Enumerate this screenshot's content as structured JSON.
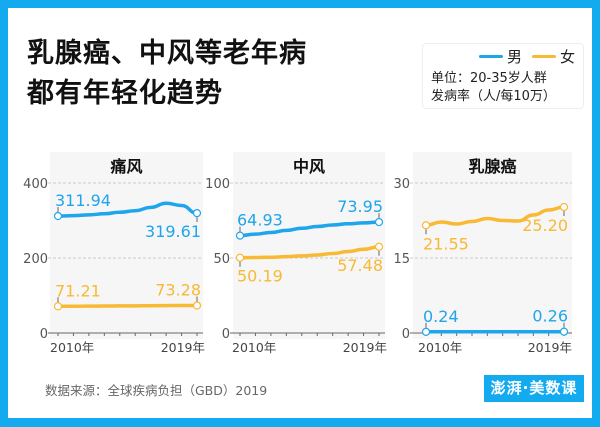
{
  "title_lines": [
    "乳腺癌、中风等老年病",
    "都有年轻化趋势"
  ],
  "legend": {
    "male": "男",
    "female": "女",
    "unit_line1": "单位：20-35岁人群",
    "unit_line2": "发病率（人/每10万）"
  },
  "colors": {
    "male": "#1ea5ec",
    "female": "#f8b934",
    "frame": "#14aaf0",
    "panel_bg": "#f6f6f6"
  },
  "source": "数据来源：全球疾病负担（GBD）2019",
  "logo": "澎湃·美数课",
  "chart_data": [
    {
      "type": "line",
      "title": "痛风",
      "x": [
        2010,
        2011,
        2012,
        2013,
        2014,
        2015,
        2016,
        2017,
        2018,
        2019
      ],
      "x_tick_labels": [
        "2010年",
        "2019年"
      ],
      "ylim": [
        0,
        400
      ],
      "yticks": [
        "0",
        "200",
        "400"
      ],
      "grid": "dashed",
      "watermark_icon": "hand-icon",
      "series": [
        {
          "name": "男",
          "values": [
            311.94,
            313,
            315,
            318,
            322,
            326,
            335,
            346,
            340,
            319.61
          ],
          "labels": [
            "311.94",
            "319.61"
          ]
        },
        {
          "name": "女",
          "values": [
            71.21,
            71.4,
            71.6,
            71.9,
            72.2,
            72.5,
            72.8,
            73.1,
            73.3,
            73.28
          ],
          "labels": [
            "71.21",
            "73.28"
          ]
        }
      ]
    },
    {
      "type": "line",
      "title": "中风",
      "x": [
        2010,
        2011,
        2012,
        2013,
        2014,
        2015,
        2016,
        2017,
        2018,
        2019
      ],
      "x_tick_labels": [
        "2010年",
        "2019年"
      ],
      "ylim": [
        0,
        100
      ],
      "yticks": [
        "0",
        "50",
        "100"
      ],
      "grid": "dashed",
      "watermark_icon": "head-icon",
      "series": [
        {
          "name": "男",
          "values": [
            64.93,
            65.9,
            67,
            68.4,
            69.8,
            71,
            72,
            72.8,
            73.4,
            73.95
          ],
          "labels": [
            "64.93",
            "73.95"
          ]
        },
        {
          "name": "女",
          "values": [
            50.19,
            50.3,
            50.5,
            50.9,
            51.4,
            52,
            53,
            54.3,
            55.8,
            57.48
          ],
          "labels": [
            "50.19",
            "57.48"
          ]
        }
      ]
    },
    {
      "type": "line",
      "title": "乳腺癌",
      "x": [
        2010,
        2011,
        2012,
        2013,
        2014,
        2015,
        2016,
        2017,
        2018,
        2019
      ],
      "x_tick_labels": [
        "2010年",
        "2019年"
      ],
      "ylim": [
        0,
        30
      ],
      "yticks": [
        "0",
        "15",
        "30"
      ],
      "grid": "dashed",
      "watermark_icon": "ribbon-icon",
      "series": [
        {
          "name": "男",
          "values": [
            0.24,
            0.24,
            0.24,
            0.25,
            0.25,
            0.25,
            0.25,
            0.26,
            0.26,
            0.26
          ],
          "labels": [
            "0.24",
            "0.26"
          ]
        },
        {
          "name": "女",
          "values": [
            21.55,
            22.2,
            21.8,
            22.3,
            22.9,
            22.5,
            22.4,
            23.6,
            24.6,
            25.2
          ],
          "labels": [
            "21.55",
            "25.20"
          ]
        }
      ]
    }
  ]
}
